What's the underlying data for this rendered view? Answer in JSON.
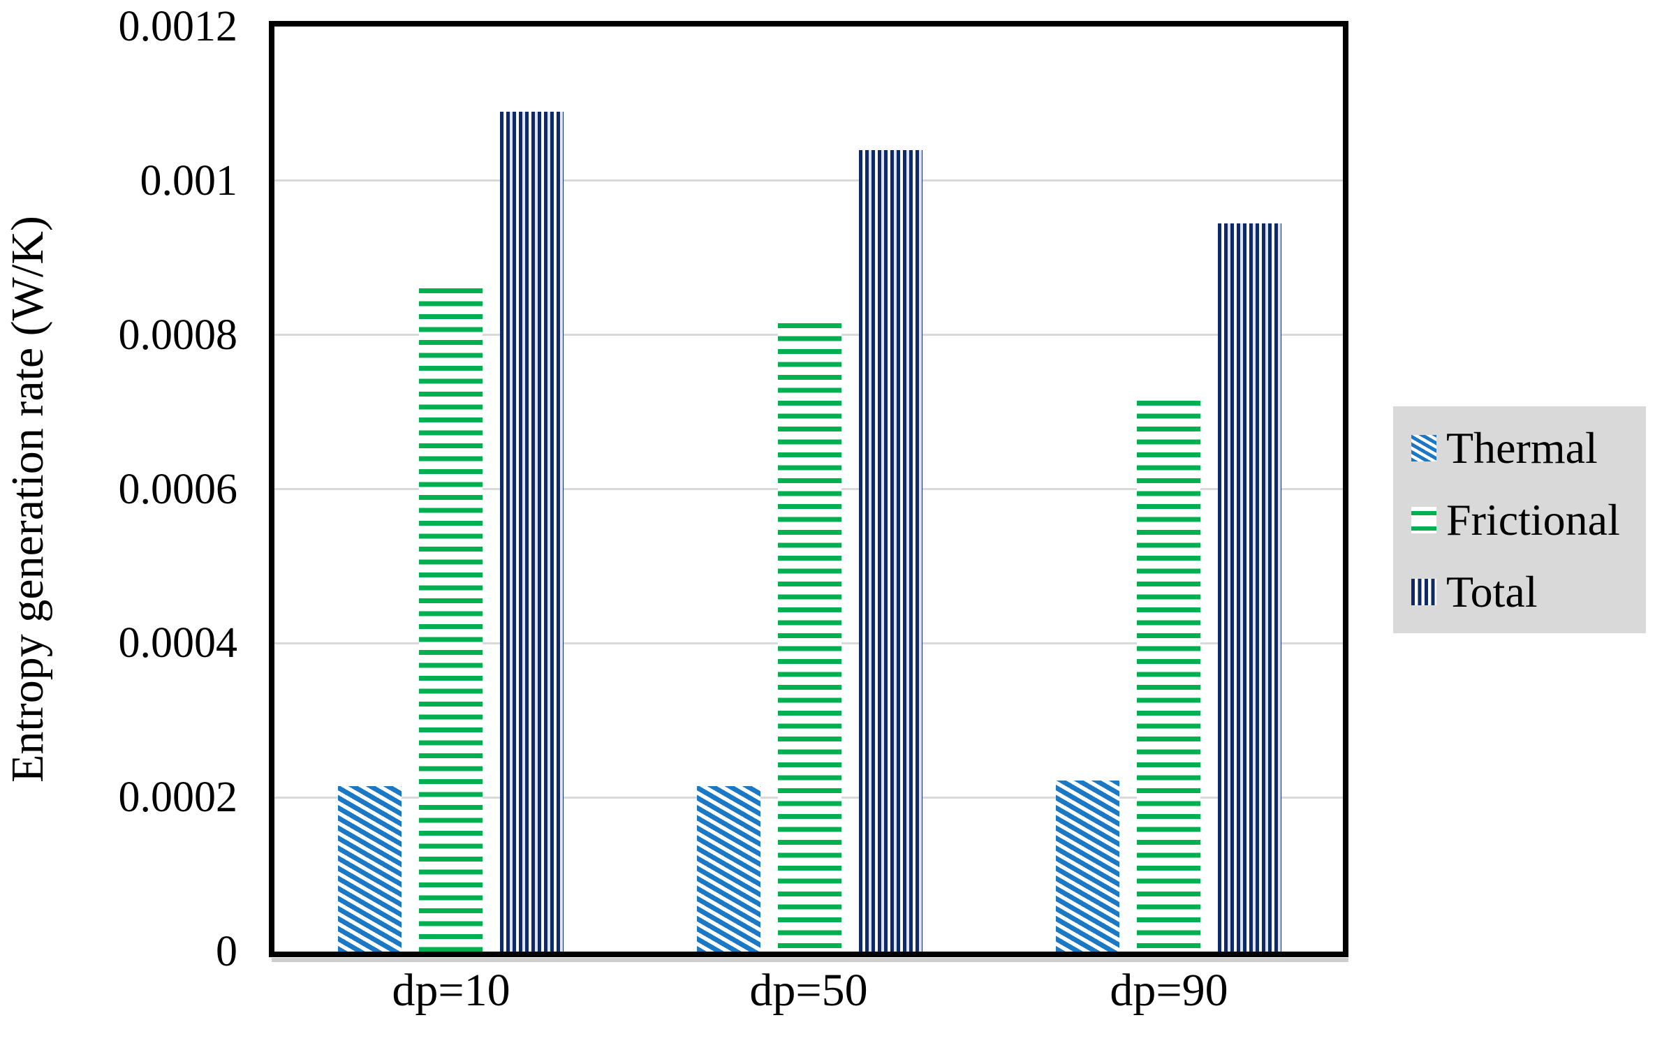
{
  "figure": {
    "background_color": "#ffffff",
    "plot_border_color": "#000000",
    "gridline_color": "#d9d9d9",
    "legend_background_color": "#d9d9d9"
  },
  "y_axis": {
    "title": "Entropy generation rate (W/K)",
    "tick_labels": [
      "0.0012",
      "0.001",
      "0.0008",
      "0.0006",
      "0.0004",
      "0.0002",
      "0"
    ],
    "tick_values": [
      0.0012,
      0.001,
      0.0008,
      0.0006,
      0.0004,
      0.0002,
      0
    ]
  },
  "x_axis": {
    "tick_labels": [
      "dp=10",
      "dp=50",
      "dp=90"
    ]
  },
  "legend": {
    "entries": [
      {
        "label": "Thermal",
        "pattern": "diagonal-stripes",
        "color": "#1b78c4"
      },
      {
        "label": "Frictional",
        "pattern": "horizontal-stripes",
        "color": "#00b050"
      },
      {
        "label": "Total",
        "pattern": "vertical-stripes",
        "color": "#0f2a68"
      }
    ]
  },
  "chart_data": {
    "type": "bar",
    "categories": [
      "dp=10",
      "dp=50",
      "dp=90"
    ],
    "series": [
      {
        "name": "Thermal",
        "values": [
          0.000215,
          0.000215,
          0.000222
        ],
        "pattern": "diagonal-stripes",
        "color": "#1b78c4"
      },
      {
        "name": "Frictional",
        "values": [
          0.00086,
          0.000815,
          0.000715
        ],
        "pattern": "horizontal-stripes",
        "color": "#00b050"
      },
      {
        "name": "Total",
        "values": [
          0.00109,
          0.00104,
          0.000945
        ],
        "pattern": "vertical-stripes",
        "color": "#0f2a68"
      }
    ],
    "title": "",
    "xlabel": "",
    "ylabel": "Entropy generation rate (W/K)",
    "ylim": [
      0,
      0.0012
    ],
    "yticks": [
      0,
      0.0002,
      0.0004,
      0.0006,
      0.0008,
      0.001,
      0.0012
    ],
    "grid": true,
    "legend_position": "right",
    "bar_fill": "pattern-hatched"
  }
}
